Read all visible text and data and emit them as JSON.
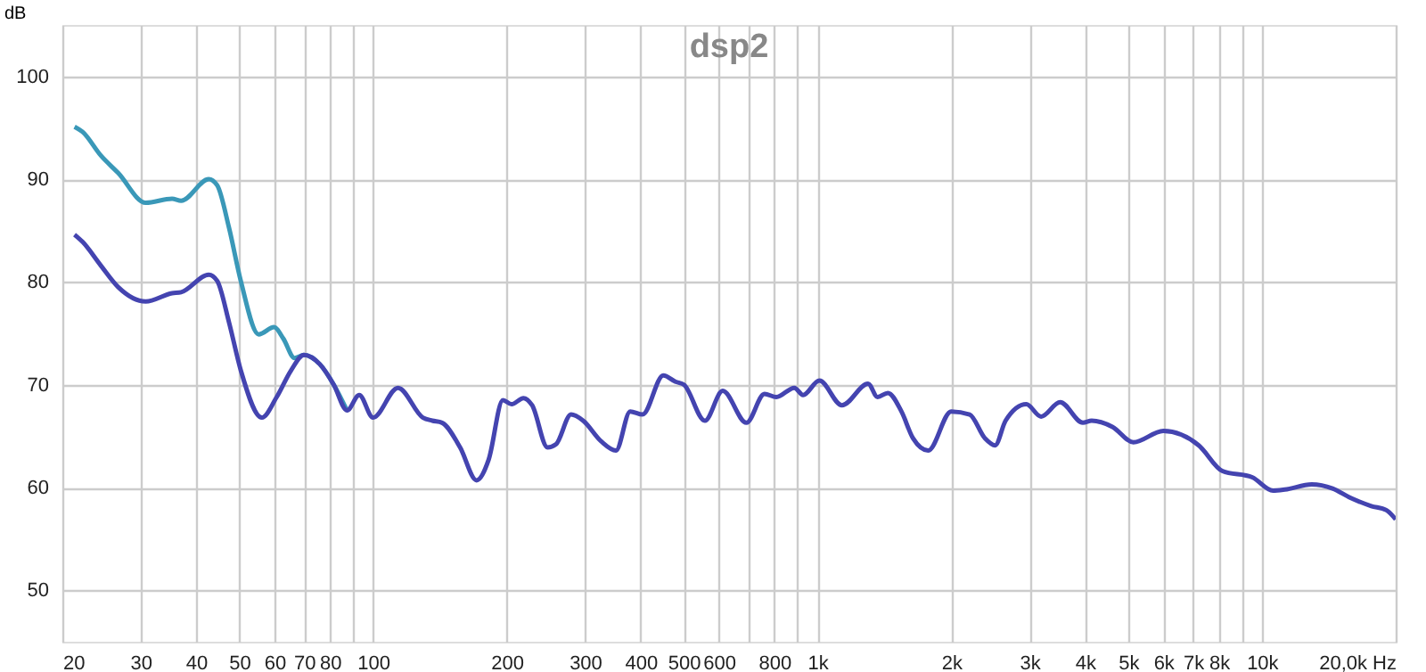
{
  "chart_data": {
    "type": "line",
    "title": "dsp2",
    "ylabel": "dB",
    "log": "x",
    "grid": true,
    "marker": "none",
    "line_style": "solid",
    "xlim": [
      20,
      20000
    ],
    "ylim": [
      45,
      105
    ],
    "xticks": [
      20,
      30,
      40,
      50,
      60,
      70,
      80,
      {
        "value": 90,
        "label": null
      },
      100,
      200,
      300,
      400,
      500,
      600,
      {
        "value": 700,
        "label": null
      },
      800,
      {
        "value": 900,
        "label": null
      },
      {
        "value": 1000,
        "label": "1k"
      },
      {
        "value": 2000,
        "label": "2k"
      },
      {
        "value": 3000,
        "label": "3k"
      },
      {
        "value": 4000,
        "label": "4k"
      },
      {
        "value": 5000,
        "label": "5k"
      },
      {
        "value": 6000,
        "label": "6k"
      },
      {
        "value": 7000,
        "label": "7k"
      },
      {
        "value": 8000,
        "label": "8k"
      },
      {
        "value": 9000,
        "label": null
      },
      {
        "value": 10000,
        "label": "10k"
      },
      {
        "value": 20000,
        "label": "20,0k Hz"
      }
    ],
    "yticks": [
      50,
      60,
      70,
      80,
      90,
      100
    ],
    "series": [
      {
        "color": "#3a98b8",
        "x": [
          21.3,
          22.2,
          24.4,
          26.7,
          30.8,
          35.3,
          37,
          42.7,
          44.6,
          47.4,
          50.4,
          55.3,
          59.9,
          62.8,
          66.6,
          69.9,
          75.9,
          81.6,
          87.4
        ],
        "values": [
          95.1,
          94.6,
          92.3,
          90.6,
          87.7,
          88.1,
          87.9,
          90,
          89.4,
          85.3,
          80.1,
          74.9,
          75.6,
          74.5,
          72.6,
          72.9,
          72,
          70,
          67.5
        ]
      },
      {
        "color": "#4444b0",
        "x": [
          21.3,
          22.2,
          24.4,
          26.7,
          30.8,
          35.3,
          37,
          42.7,
          44.6,
          47.4,
          50.4,
          56.2,
          60.7,
          65.4,
          69.9,
          75.9,
          81.6,
          87.4,
          93.1,
          100,
          113.8,
          129.5,
          135.9,
          143,
          157,
          171,
          182,
          196,
          205,
          218,
          228,
          247,
          258,
          279,
          297,
          326,
          352,
          379,
          404,
          450,
          479,
          501,
          558,
          612,
          692,
          760,
          808,
          887,
          928,
          1010,
          1135,
          1300,
          1365,
          1440,
          1545,
          1640,
          1775,
          2000,
          2200,
          2380,
          2510,
          2650,
          2950,
          3185,
          3515,
          3955,
          4140,
          4610,
          5140,
          6000,
          7210,
          8150,
          9510,
          10590,
          11260,
          12940,
          14420,
          15810,
          17620,
          19050,
          20000
        ],
        "values": [
          84.6,
          83.9,
          81.6,
          79.5,
          78.1,
          78.9,
          79,
          80.7,
          80.1,
          76.1,
          71.4,
          66.8,
          68.8,
          71.4,
          72.9,
          72,
          70,
          67.5,
          69,
          66.8,
          69.7,
          66.8,
          66.5,
          66.3,
          63.9,
          60.7,
          62.7,
          68.5,
          68.1,
          68.7,
          68,
          63.9,
          64.2,
          67.1,
          66.5,
          64.5,
          63.6,
          67.4,
          67.1,
          70.9,
          70.3,
          70,
          66.5,
          69.4,
          66.3,
          69.1,
          68.8,
          69.7,
          69,
          70.4,
          68,
          70.1,
          68.8,
          69.2,
          67.4,
          64.8,
          63.6,
          67.4,
          67.1,
          64.8,
          64.1,
          66.5,
          68.1,
          66.9,
          68.3,
          66.3,
          66.5,
          65.9,
          64.4,
          65.5,
          64.1,
          61.6,
          61,
          59.7,
          59.8,
          60.3,
          59.9,
          59,
          58.2,
          57.8,
          56.9
        ]
      }
    ]
  }
}
